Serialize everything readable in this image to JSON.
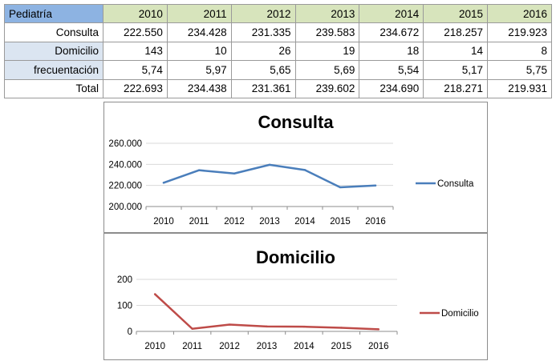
{
  "table": {
    "corner": "Pediatría",
    "years": [
      "2010",
      "2011",
      "2012",
      "2013",
      "2014",
      "2015",
      "2016"
    ],
    "rows": [
      {
        "label": "Consulta",
        "values": [
          "222.550",
          "234.428",
          "231.335",
          "239.583",
          "234.672",
          "218.257",
          "219.923"
        ]
      },
      {
        "label": "Domicilio",
        "values": [
          "143",
          "10",
          "26",
          "19",
          "18",
          "14",
          "8"
        ]
      },
      {
        "label": "frecuentación",
        "values": [
          "5,74",
          "5,97",
          "5,65",
          "5,69",
          "5,54",
          "5,17",
          "5,75"
        ]
      },
      {
        "label": "Total",
        "values": [
          "222.693",
          "234.438",
          "231.361",
          "239.602",
          "234.690",
          "218.271",
          "219.931"
        ]
      }
    ]
  },
  "chart_data": [
    {
      "type": "line",
      "title": "Consulta",
      "categories": [
        "2010",
        "2011",
        "2012",
        "2013",
        "2014",
        "2015",
        "2016"
      ],
      "series": [
        {
          "name": "Consulta",
          "values": [
            222550,
            234428,
            231335,
            239583,
            234672,
            218257,
            219923
          ],
          "color": "#4a7ebb"
        }
      ],
      "ylim": [
        200000,
        260000
      ],
      "yticks": [
        200000,
        220000,
        240000,
        260000
      ],
      "ytick_labels": [
        "200.000",
        "220.000",
        "240.000",
        "260.000"
      ],
      "grid": true,
      "legend": "right"
    },
    {
      "type": "line",
      "title": "Domicilio",
      "categories": [
        "2010",
        "2011",
        "2012",
        "2013",
        "2014",
        "2015",
        "2016"
      ],
      "series": [
        {
          "name": "Domicilio",
          "values": [
            143,
            10,
            26,
            19,
            18,
            14,
            8
          ],
          "color": "#be4b48"
        }
      ],
      "ylim": [
        0,
        200
      ],
      "yticks": [
        0,
        100,
        200
      ],
      "ytick_labels": [
        "0",
        "100",
        "200"
      ],
      "grid": true,
      "legend": "right"
    }
  ]
}
